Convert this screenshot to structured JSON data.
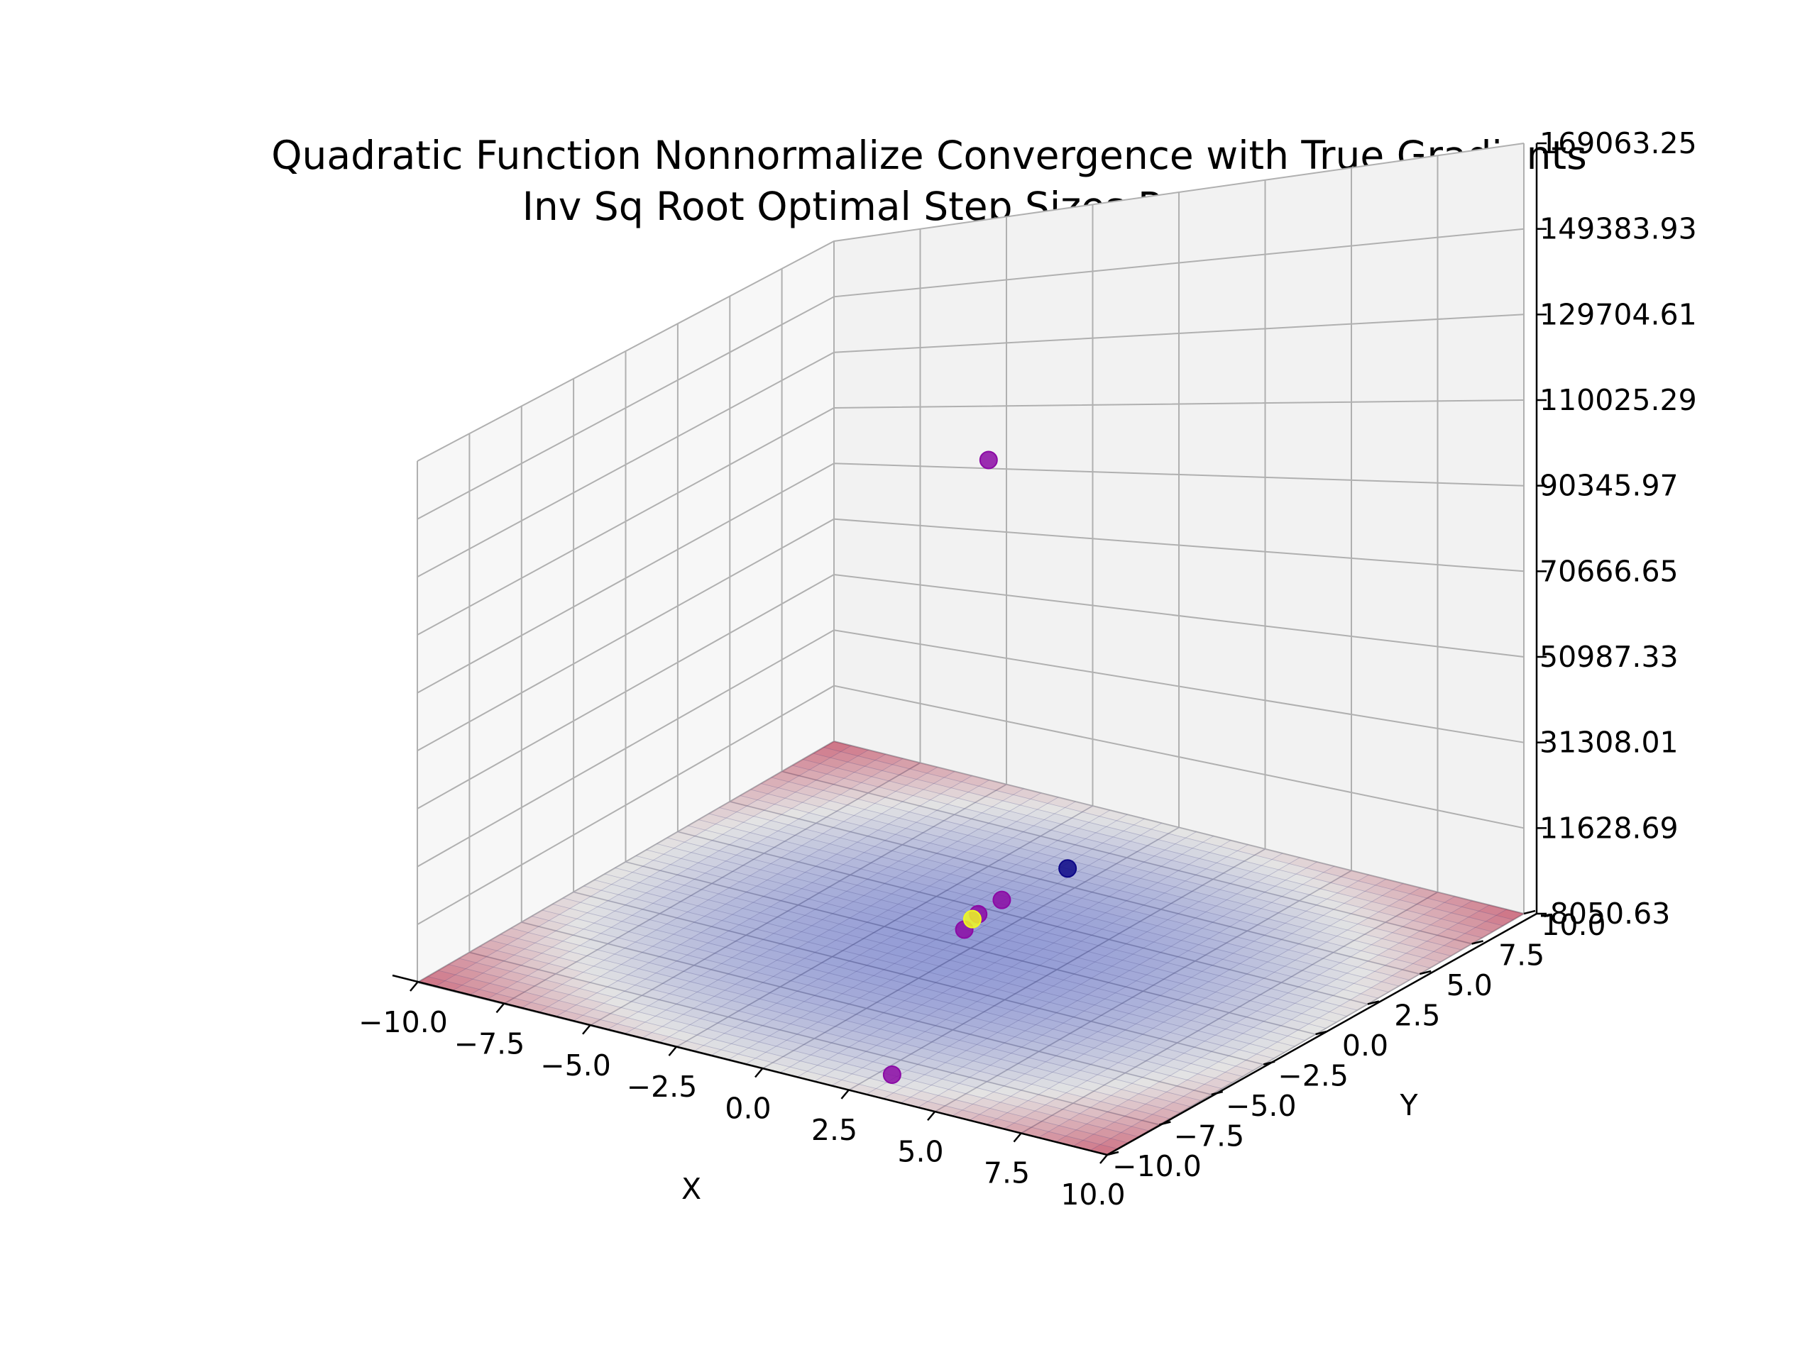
{
  "chart_data": {
    "type": "scatter",
    "title": "Quadratic Function Nonnormalize Convergence with True Gradients",
    "subtitle": "Inv Sq Root Optimal Step Sizes Param 2.0",
    "xlabel": "X",
    "ylabel": "Y",
    "zlabel": "",
    "xlim": [
      -10,
      10
    ],
    "ylim": [
      -10,
      10
    ],
    "zlim": [
      -8050.63,
      169063.25
    ],
    "x_ticks": [
      "−10.0",
      "−7.5",
      "−5.0",
      "−2.5",
      "0.0",
      "2.5",
      "5.0",
      "7.5",
      "10.0"
    ],
    "y_ticks": [
      "−10.0",
      "−7.5",
      "−5.0",
      "−2.5",
      "0.0",
      "2.5",
      "5.0",
      "7.5",
      "10.0"
    ],
    "z_ticks": [
      "-8050.63",
      "11628.69",
      "31308.01",
      "50987.33",
      "70666.65",
      "90345.97",
      "110025.29",
      "129704.61",
      "149383.93",
      "169063.25"
    ],
    "grid": true,
    "surface": {
      "type": "quadratic bowl",
      "colormap": "coolwarm",
      "alpha": 0.5
    },
    "points": [
      {
        "x": 3.4,
        "y": -9.4,
        "z": -4000,
        "color": "#8b0aa5"
      },
      {
        "x": 0.4,
        "y": 0.2,
        "z": 125000,
        "color": "#8b0aa5"
      },
      {
        "x": 1.0,
        "y": 3.0,
        "z": 6000,
        "color": "#0d0887"
      },
      {
        "x": 0.3,
        "y": 1.0,
        "z": 2500,
        "color": "#8b0aa5"
      },
      {
        "x": 0.1,
        "y": 0.2,
        "z": 800,
        "color": "#8b0aa5"
      },
      {
        "x": 0.3,
        "y": -0.8,
        "z": 300,
        "color": "#8b0aa5"
      },
      {
        "x": 0.05,
        "y": 0.0,
        "z": 0,
        "color": "#f0f921"
      }
    ]
  }
}
